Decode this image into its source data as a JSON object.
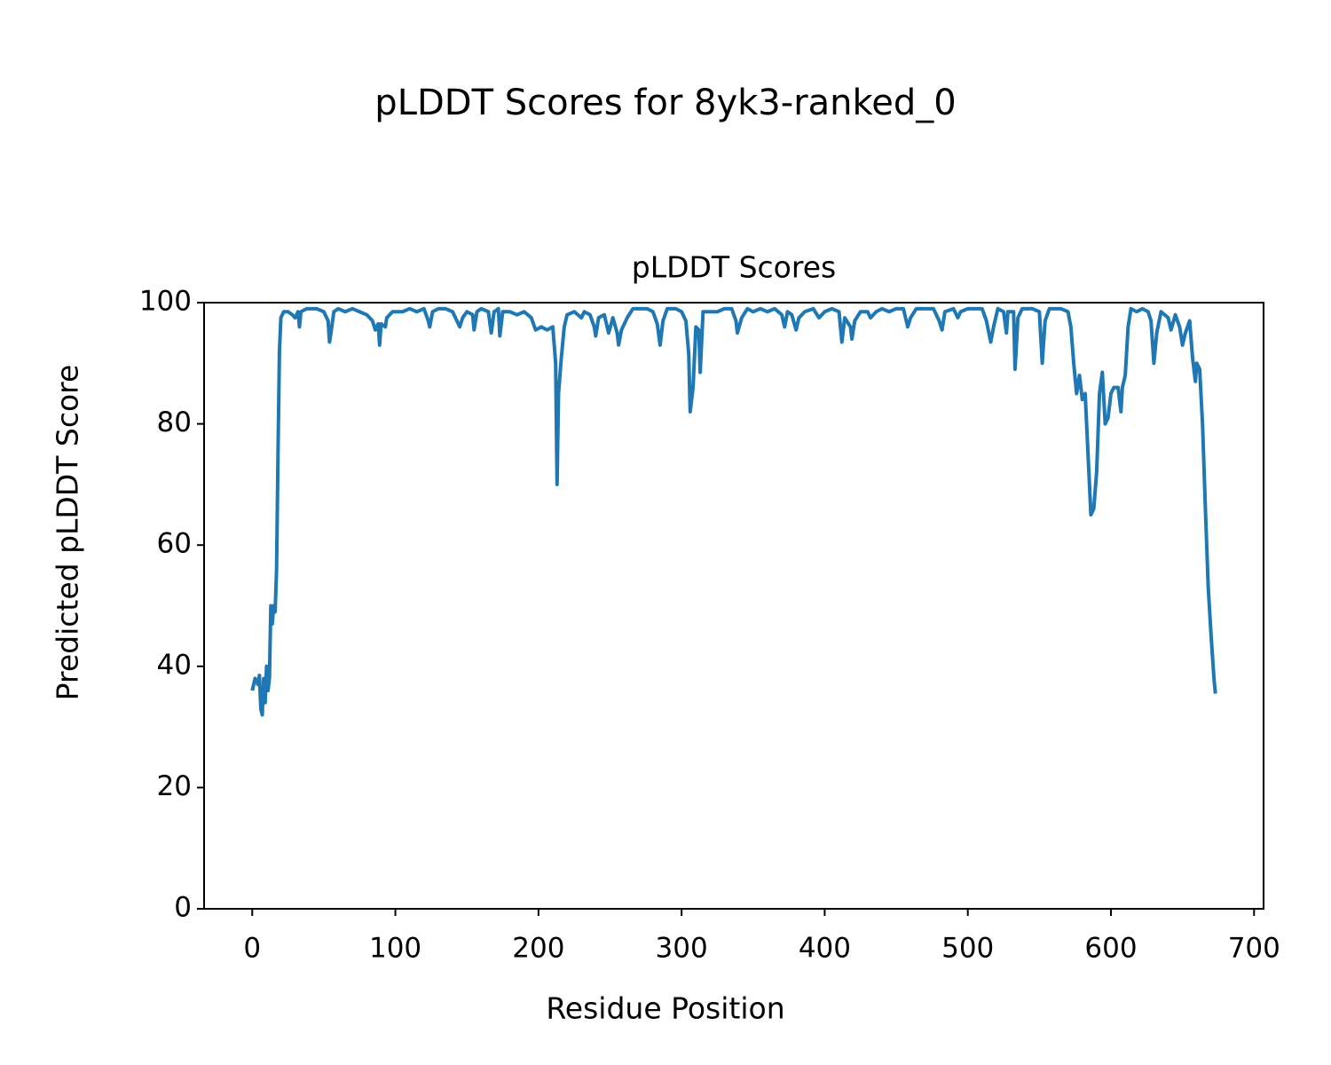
{
  "chart_data": {
    "type": "line",
    "suptitle": "pLDDT Scores for 8yk3-ranked_0",
    "title": "pLDDT Scores",
    "x_label": "Residue Position",
    "y_label": "Predicted pLDDT Score",
    "xlim": [
      -33.65,
      706.65
    ],
    "ylim": [
      0,
      100
    ],
    "xticks": [
      0,
      100,
      200,
      300,
      400,
      500,
      600,
      700
    ],
    "yticks": [
      0,
      20,
      40,
      60,
      80,
      100
    ],
    "grid": false,
    "series": [
      {
        "color": "#1f77b4",
        "x": [
          0,
          2,
          4,
          5,
          6,
          7,
          8,
          9,
          10,
          11,
          12,
          13,
          14,
          15,
          16,
          17,
          18,
          19,
          20,
          22,
          25,
          28,
          30,
          32,
          33,
          34,
          38,
          45,
          50,
          53,
          54,
          55,
          57,
          60,
          65,
          70,
          75,
          80,
          84,
          86,
          88,
          89,
          90,
          93,
          94,
          98,
          105,
          110,
          115,
          120,
          123,
          124,
          126,
          130,
          135,
          140,
          142,
          145,
          147,
          150,
          154,
          155,
          157,
          160,
          165,
          167,
          169,
          172,
          173,
          175,
          180,
          185,
          190,
          195,
          198,
          202,
          206,
          210,
          212,
          213,
          214,
          216,
          218,
          220,
          225,
          230,
          232,
          236,
          239,
          240,
          242,
          246,
          249,
          252,
          255,
          256,
          258,
          262,
          266,
          270,
          276,
          280,
          283,
          285,
          287,
          290,
          296,
          300,
          303,
          305,
          306,
          308,
          310,
          312,
          313,
          315,
          320,
          325,
          330,
          335,
          338,
          339,
          342,
          346,
          350,
          355,
          360,
          365,
          370,
          372,
          374,
          377,
          380,
          382,
          386,
          392,
          396,
          400,
          405,
          410,
          412,
          414,
          418,
          419,
          421,
          425,
          430,
          432,
          436,
          440,
          445,
          450,
          455,
          458,
          460,
          464,
          470,
          476,
          480,
          482,
          484,
          490,
          493,
          495,
          500,
          505,
          510,
          513,
          516,
          518,
          521,
          525,
          527,
          528,
          532,
          533,
          535,
          538,
          545,
          550,
          552,
          554,
          557,
          565,
          570,
          572,
          574,
          576,
          578,
          580,
          582,
          584,
          585,
          586,
          588,
          590,
          592,
          594,
          596,
          598,
          600,
          602,
          605,
          607,
          608,
          610,
          612,
          614,
          618,
          622,
          626,
          628,
          630,
          632,
          635,
          640,
          642,
          645,
          648,
          650,
          652,
          655,
          657,
          659,
          660,
          662,
          664,
          666,
          668,
          670,
          672,
          673
        ],
        "values": [
          36,
          38,
          37,
          38.5,
          33,
          32,
          38,
          34,
          40,
          36,
          38,
          50,
          47,
          50,
          49,
          56,
          75,
          92,
          97.5,
          98.5,
          98.5,
          98,
          97.5,
          98.5,
          96,
          98.5,
          99,
          99,
          98.5,
          97,
          93.5,
          95,
          98.5,
          99,
          98.5,
          99,
          98.5,
          98,
          97,
          95.5,
          96.5,
          93,
          96.5,
          96,
          97.5,
          98.5,
          98.5,
          99,
          98.5,
          99,
          97,
          96,
          98.5,
          99,
          99,
          98.5,
          97.5,
          96,
          97.5,
          98.5,
          98,
          95.5,
          98.5,
          99,
          98.5,
          95,
          98.5,
          99,
          94.5,
          98.5,
          98.5,
          98,
          98.5,
          97.5,
          95.5,
          96,
          95.5,
          96,
          90,
          70,
          85,
          91,
          96,
          98,
          98.5,
          97.5,
          98.5,
          98,
          96,
          94.5,
          97.5,
          98,
          95,
          97.5,
          95,
          93,
          95.5,
          97.5,
          99,
          99,
          99,
          98.5,
          96.5,
          93,
          97,
          99,
          99,
          98.5,
          97,
          91.5,
          82,
          86,
          96,
          95.5,
          88.5,
          98.5,
          98.5,
          98.5,
          99,
          99,
          97,
          95,
          97.5,
          99,
          98.5,
          99,
          98.5,
          99,
          98,
          96,
          98.5,
          98,
          95.5,
          97.5,
          98.5,
          99,
          97.5,
          98.5,
          99,
          98.5,
          93.5,
          97.5,
          96,
          94,
          97,
          98.5,
          98.5,
          97.5,
          98.5,
          99,
          98.5,
          99,
          99,
          96,
          97.5,
          99,
          99,
          99,
          97,
          95.5,
          98.5,
          99,
          97.5,
          98.5,
          99,
          99,
          99,
          97,
          93.5,
          96,
          99,
          98.5,
          95,
          98.5,
          98.5,
          89,
          97.5,
          99,
          99,
          98.5,
          90,
          97,
          99,
          99,
          98.5,
          96,
          90,
          85,
          88,
          84,
          85,
          75,
          70,
          65,
          66,
          72,
          85,
          88.5,
          80,
          81,
          85,
          86,
          86,
          82,
          86,
          88,
          96,
          99,
          98.5,
          99,
          98.5,
          97,
          90,
          95,
          98.5,
          97.5,
          95.5,
          98,
          96,
          93,
          95,
          97,
          91,
          87,
          90,
          89,
          80,
          66,
          53,
          45,
          38,
          35.5
        ]
      }
    ]
  }
}
